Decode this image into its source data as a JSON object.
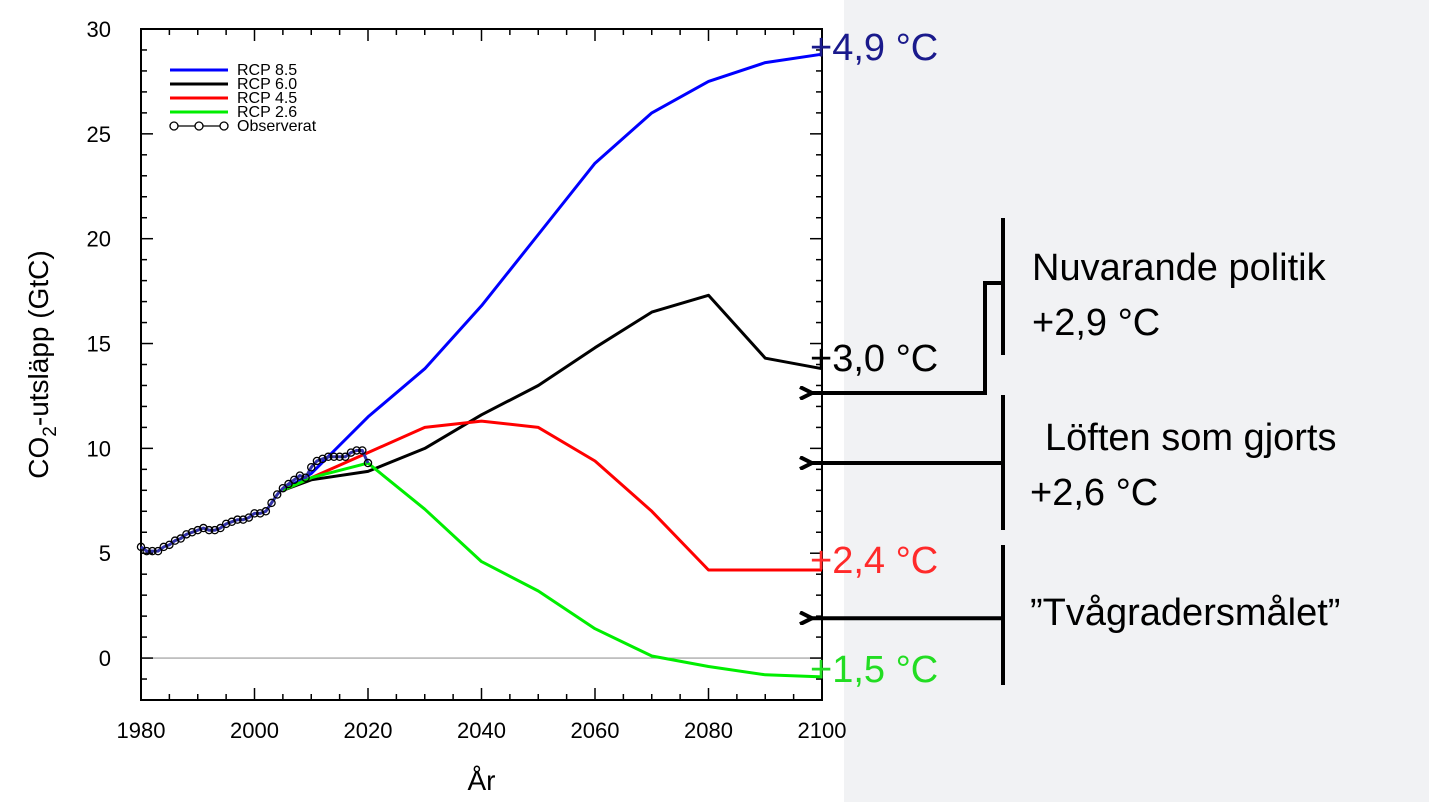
{
  "chart_data": {
    "type": "line",
    "xlabel": "År",
    "ylabel_main": "CO",
    "ylabel_sub": "2",
    "ylabel_rest": "-utsläpp (GtC)",
    "xlim": [
      1980,
      2100
    ],
    "ylim": [
      -2,
      30
    ],
    "x_ticks": [
      1980,
      2000,
      2020,
      2040,
      2060,
      2080,
      2100
    ],
    "y_ticks": [
      0,
      5,
      10,
      15,
      20,
      25,
      30
    ],
    "zero_line": true,
    "legend_position": "top-left",
    "series": [
      {
        "name": "RCP 8.5",
        "color": "#0000ff",
        "points": [
          [
            2005,
            8.0
          ],
          [
            2010,
            8.8
          ],
          [
            2020,
            11.5
          ],
          [
            2030,
            13.8
          ],
          [
            2040,
            16.8
          ],
          [
            2050,
            20.2
          ],
          [
            2060,
            23.6
          ],
          [
            2070,
            26.0
          ],
          [
            2080,
            27.5
          ],
          [
            2090,
            28.4
          ],
          [
            2100,
            28.8
          ]
        ]
      },
      {
        "name": "RCP 6.0",
        "color": "#000000",
        "points": [
          [
            2005,
            8.0
          ],
          [
            2010,
            8.5
          ],
          [
            2020,
            8.9
          ],
          [
            2030,
            10.0
          ],
          [
            2040,
            11.6
          ],
          [
            2050,
            13.0
          ],
          [
            2060,
            14.8
          ],
          [
            2070,
            16.5
          ],
          [
            2080,
            17.3
          ],
          [
            2090,
            14.3
          ],
          [
            2100,
            13.8
          ]
        ]
      },
      {
        "name": "RCP 4.5",
        "color": "#ff0000",
        "points": [
          [
            2005,
            8.0
          ],
          [
            2010,
            8.6
          ],
          [
            2020,
            9.8
          ],
          [
            2030,
            11.0
          ],
          [
            2040,
            11.3
          ],
          [
            2050,
            11.0
          ],
          [
            2060,
            9.4
          ],
          [
            2070,
            7.0
          ],
          [
            2080,
            4.2
          ],
          [
            2090,
            4.2
          ],
          [
            2100,
            4.2
          ]
        ]
      },
      {
        "name": "RCP 2.6",
        "color": "#00ee00",
        "points": [
          [
            2005,
            8.0
          ],
          [
            2010,
            8.6
          ],
          [
            2020,
            9.3
          ],
          [
            2030,
            7.1
          ],
          [
            2040,
            4.6
          ],
          [
            2050,
            3.2
          ],
          [
            2060,
            1.4
          ],
          [
            2070,
            0.1
          ],
          [
            2080,
            -0.4
          ],
          [
            2090,
            -0.8
          ],
          [
            2100,
            -0.9
          ]
        ]
      }
    ],
    "observed": {
      "name": "Observerat",
      "color": "#000000",
      "fill": "#3333aa",
      "points": [
        [
          1980,
          5.3
        ],
        [
          1981,
          5.1
        ],
        [
          1982,
          5.1
        ],
        [
          1983,
          5.1
        ],
        [
          1984,
          5.3
        ],
        [
          1985,
          5.4
        ],
        [
          1986,
          5.6
        ],
        [
          1987,
          5.7
        ],
        [
          1988,
          5.9
        ],
        [
          1989,
          6.0
        ],
        [
          1990,
          6.1
        ],
        [
          1991,
          6.2
        ],
        [
          1992,
          6.1
        ],
        [
          1993,
          6.1
        ],
        [
          1994,
          6.2
        ],
        [
          1995,
          6.4
        ],
        [
          1996,
          6.5
        ],
        [
          1997,
          6.6
        ],
        [
          1998,
          6.6
        ],
        [
          1999,
          6.7
        ],
        [
          2000,
          6.9
        ],
        [
          2001,
          6.9
        ],
        [
          2002,
          7.0
        ],
        [
          2003,
          7.4
        ],
        [
          2004,
          7.8
        ],
        [
          2005,
          8.1
        ],
        [
          2006,
          8.3
        ],
        [
          2007,
          8.5
        ],
        [
          2008,
          8.7
        ],
        [
          2009,
          8.6
        ],
        [
          2010,
          9.1
        ],
        [
          2011,
          9.4
        ],
        [
          2012,
          9.5
        ],
        [
          2013,
          9.6
        ],
        [
          2014,
          9.6
        ],
        [
          2015,
          9.6
        ],
        [
          2016,
          9.6
        ],
        [
          2017,
          9.8
        ],
        [
          2018,
          9.9
        ],
        [
          2019,
          9.9
        ],
        [
          2020,
          9.3
        ]
      ]
    }
  },
  "temperature_labels": [
    {
      "text": "+4,9 °C",
      "color": "#1a1a8c",
      "series": "RCP 8.5"
    },
    {
      "text": "+3,0 °C",
      "color": "#000000",
      "series": "RCP 6.0"
    },
    {
      "text": "+2,4 °C",
      "color": "#ff2a2a",
      "series": "RCP 4.5"
    },
    {
      "text": "+1,5 °C",
      "color": "#22dd22",
      "series": "RCP 2.6"
    }
  ],
  "annotations": {
    "current_policy": {
      "line1": "Nuvarande politik",
      "line2": "+2,9 °C",
      "target_value": 12.5
    },
    "pledges": {
      "line1": "Löften som gjorts",
      "line2": "+2,6 °C",
      "target_value": 9.3
    },
    "two_degree": {
      "line1": "”Tvågradersmålet”",
      "target_value": 1.9
    }
  }
}
